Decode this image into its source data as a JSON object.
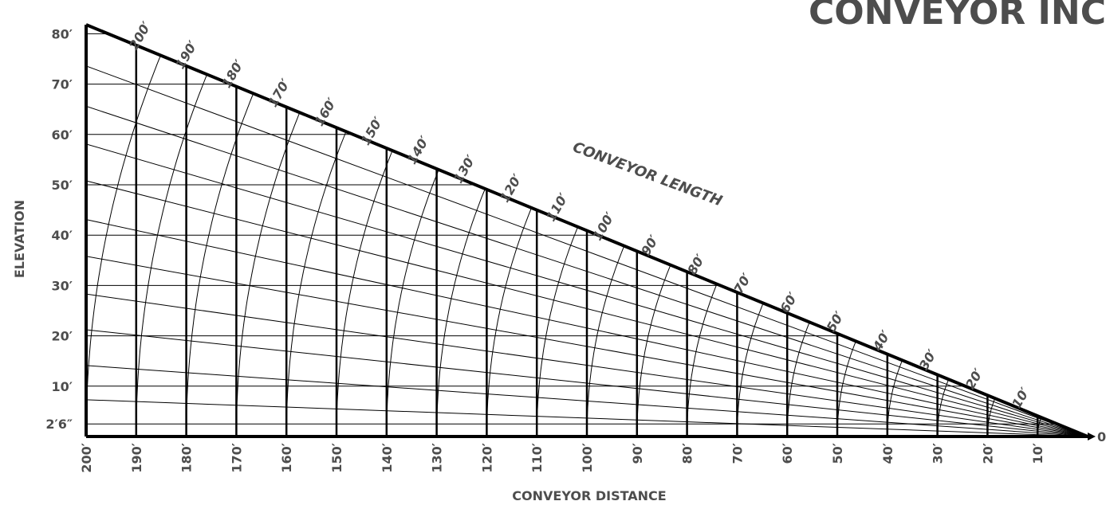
{
  "brand": "CONVEYOR INC",
  "chart_data": {
    "type": "line",
    "title": "",
    "series_label": "CONVEYOR LENGTH",
    "xlabel": "CONVEYOR DISTANCE",
    "ylabel": "ELEVATION",
    "x_reversed": true,
    "xlim": [
      0,
      200
    ],
    "ylim": [
      0,
      82
    ],
    "grid": true,
    "origin_label": "0",
    "x_ticks": [
      200,
      190,
      180,
      170,
      160,
      150,
      140,
      130,
      120,
      110,
      100,
      90,
      80,
      70,
      60,
      50,
      40,
      30,
      20,
      10
    ],
    "x_tick_labels": [
      "200′",
      "190′",
      "180′",
      "170′",
      "160′",
      "150′",
      "140′",
      "130′",
      "120′",
      "110′",
      "100′",
      "90′",
      "80′",
      "70′",
      "60′",
      "50′",
      "40′",
      "30′",
      "20′",
      "10′"
    ],
    "y_ticks": [
      2.5,
      10,
      20,
      30,
      40,
      50,
      60,
      70,
      80
    ],
    "y_tick_labels": [
      "2′6″",
      "10′",
      "20′",
      "30′",
      "40′",
      "50′",
      "60′",
      "70′",
      "80′"
    ],
    "length_arcs": [
      10,
      20,
      30,
      40,
      50,
      60,
      70,
      80,
      90,
      100,
      110,
      120,
      130,
      140,
      150,
      160,
      170,
      180,
      190,
      200
    ],
    "length_labels": [
      "10′",
      "20′",
      "30′",
      "40′",
      "50′",
      "60′",
      "70′",
      "80′",
      "90′",
      "100′",
      "110′",
      "120′",
      "130′",
      "140′",
      "150′",
      "160′",
      "170′",
      "180′",
      "190′",
      "200′"
    ],
    "max_line": {
      "x_end": 200,
      "y_end": 81.8
    },
    "incline_lines_elevation_at_200": [
      7.3,
      14.1,
      21.2,
      28.3,
      35.8,
      43.1,
      50.8,
      58.1,
      65.6,
      73.6,
      81.8
    ]
  }
}
